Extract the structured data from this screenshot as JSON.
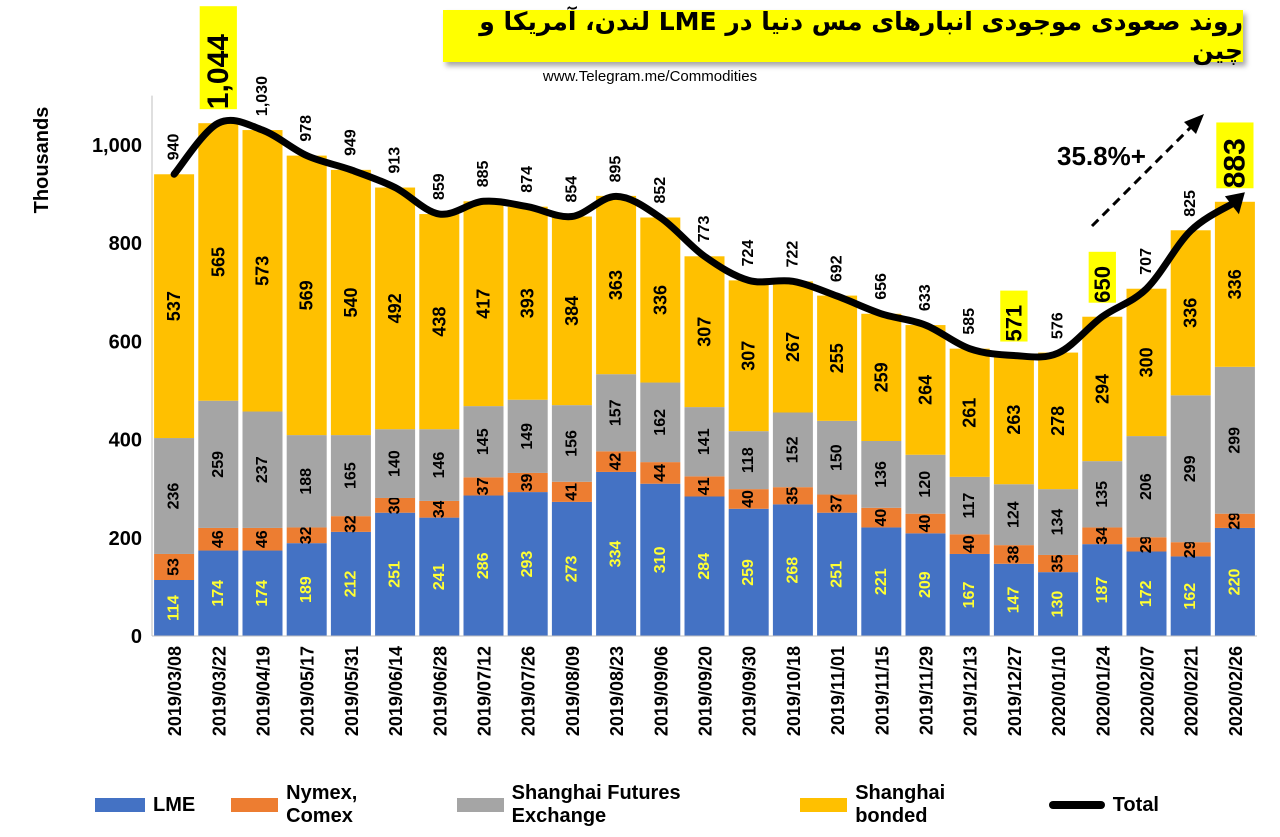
{
  "title": "روند صعودی موجودی انبارهای مس دنیا در LME لندن، آمریکا و چین",
  "source": "www.Telegram.me/Commodities",
  "colors": {
    "lme": "#4472c4",
    "nymex": "#ed7d31",
    "shfe": "#a5a5a5",
    "bonded": "#ffc000",
    "total": "#000000",
    "highlight": "#ffff00"
  },
  "chart_data": {
    "type": "bar",
    "stacked": true,
    "ylabel": "Thousands",
    "ylim": [
      0,
      1100
    ],
    "yticks": [
      "0",
      "200",
      "400",
      "600",
      "800",
      "1,000"
    ],
    "ytick_values": [
      0,
      200,
      400,
      600,
      800,
      1000
    ],
    "categories": [
      "2019/03/08",
      "2019/03/22",
      "2019/04/19",
      "2019/05/17",
      "2019/05/31",
      "2019/06/14",
      "2019/06/28",
      "2019/07/12",
      "2019/07/26",
      "2019/08/09",
      "2019/08/23",
      "2019/09/06",
      "2019/09/20",
      "2019/09/30",
      "2019/10/18",
      "2019/11/01",
      "2019/11/15",
      "2019/11/29",
      "2019/12/13",
      "2019/12/27",
      "2020/01/10",
      "2020/01/24",
      "2020/02/07",
      "2020/02/21",
      "2020/02/26"
    ],
    "series": [
      {
        "name": "LME",
        "values": [
          114,
          174,
          174,
          189,
          212,
          251,
          241,
          286,
          293,
          273,
          334,
          310,
          284,
          259,
          268,
          251,
          221,
          209,
          167,
          147,
          130,
          187,
          172,
          162,
          220
        ]
      },
      {
        "name": "Nymex, Comex",
        "values": [
          53,
          46,
          46,
          32,
          32,
          30,
          34,
          37,
          39,
          41,
          42,
          44,
          41,
          40,
          35,
          37,
          40,
          40,
          40,
          38,
          35,
          34,
          29,
          29,
          29
        ]
      },
      {
        "name": "Shanghai Futures Exchange",
        "values": [
          236,
          259,
          237,
          188,
          165,
          140,
          146,
          145,
          149,
          156,
          157,
          162,
          141,
          118,
          152,
          150,
          136,
          120,
          117,
          124,
          134,
          135,
          206,
          299,
          299
        ]
      },
      {
        "name": "Shanghai bonded",
        "values": [
          537,
          565,
          573,
          569,
          540,
          492,
          438,
          417,
          393,
          384,
          363,
          336,
          307,
          307,
          267,
          255,
          259,
          264,
          261,
          263,
          278,
          294,
          300,
          336,
          336
        ]
      }
    ],
    "total": {
      "name": "Total",
      "values": [
        940,
        1044,
        1030,
        978,
        949,
        913,
        859,
        885,
        874,
        854,
        895,
        852,
        773,
        724,
        722,
        692,
        656,
        633,
        585,
        571,
        576,
        650,
        707,
        825,
        883
      ]
    },
    "total_labels": [
      "940",
      "1,044",
      "1,030",
      "978",
      "949",
      "913",
      "859",
      "885",
      "874",
      "854",
      "895",
      "852",
      "773",
      "724",
      "722",
      "692",
      "656",
      "633",
      "585",
      "571",
      "576",
      "650",
      "707",
      "825",
      "883"
    ],
    "highlighted_totals": [
      1,
      19,
      21,
      24
    ],
    "annotation": "35.8%+",
    "legend_position": "bottom"
  }
}
